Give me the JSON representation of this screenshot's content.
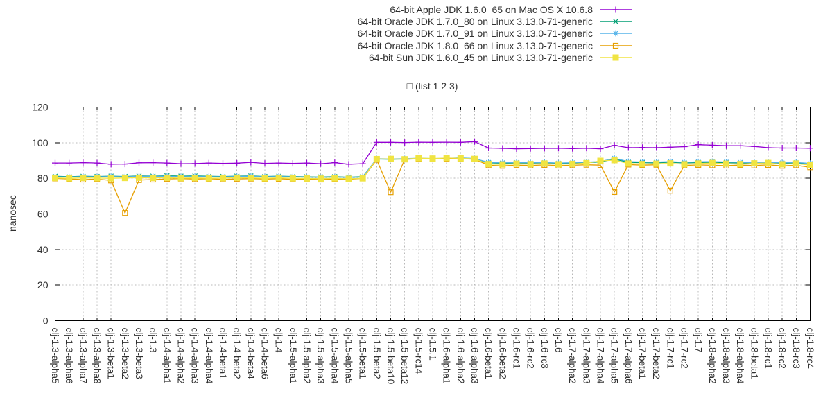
{
  "chart_data": {
    "type": "line",
    "title": "□ (list 1 2 3)",
    "ylabel": "nanosec",
    "xlabel": "",
    "ylim": [
      0,
      120
    ],
    "yticks": [
      0,
      20,
      40,
      60,
      80,
      100,
      120
    ],
    "grid": true,
    "legend_position": "top-center-outside",
    "categories": [
      "clj-1.3-alpha5",
      "clj-1.3-alpha6",
      "clj-1.3-alpha7",
      "clj-1.3-alpha8",
      "clj-1.3-beta1",
      "clj-1.3-beta2",
      "clj-1.3-beta3",
      "clj-1.3",
      "clj-1.4-alpha1",
      "clj-1.4-alpha2",
      "clj-1.4-alpha3",
      "clj-1.4-alpha4",
      "clj-1.4-beta1",
      "clj-1.4-beta2",
      "clj-1.4-beta4",
      "clj-1.4-beta6",
      "clj-1.4",
      "clj-1.5-alpha1",
      "clj-1.5-alpha2",
      "clj-1.5-alpha3",
      "clj-1.5-alpha4",
      "clj-1.5-alpha5",
      "clj-1.5-beta1",
      "clj-1.5-beta2",
      "clj-1.5-beta10",
      "clj-1.5-beta12",
      "clj-1.5-rc14",
      "clj-1.5.1",
      "clj-1.6-alpha1",
      "clj-1.6-alpha2",
      "clj-1.6-alpha3",
      "clj-1.6-beta1",
      "clj-1.6-beta2",
      "clj-1.6-rc1",
      "clj-1.6-rc2",
      "clj-1.6-rc3",
      "clj-1.6",
      "clj-1.7-alpha2",
      "clj-1.7-alpha3",
      "clj-1.7-alpha4",
      "clj-1.7-alpha5",
      "clj-1.7-alpha6",
      "clj-1.7-beta1",
      "clj-1.7-beta2",
      "clj-1.7-rc1",
      "clj-1.7-rc2",
      "clj-1.7",
      "clj-1.8-alpha2",
      "clj-1.8-alpha3",
      "clj-1.8-alpha4",
      "clj-1.8-beta1",
      "clj-1.8-rc1",
      "clj-1.8-rc2",
      "clj-1.8-rc3",
      "clj-1.8-rc4"
    ],
    "series": [
      {
        "name": "64-bit Apple JDK 1.6.0_65 on Mac OS X 10.6.8",
        "color": "#9400d3",
        "marker": "plus",
        "values": [
          88.6,
          88.6,
          88.8,
          88.6,
          87.9,
          88.0,
          88.7,
          88.8,
          88.6,
          88.2,
          88.3,
          88.6,
          88.4,
          88.5,
          89.0,
          88.4,
          88.6,
          88.4,
          88.6,
          88.2,
          88.8,
          87.9,
          88.2,
          100.2,
          100.2,
          100.1,
          100.3,
          100.2,
          100.3,
          100.2,
          100.6,
          97.0,
          96.8,
          96.6,
          96.7,
          96.8,
          96.9,
          96.7,
          96.9,
          96.6,
          98.5,
          97.2,
          97.3,
          97.2,
          97.5,
          97.8,
          98.9,
          98.6,
          98.3,
          98.3,
          97.9,
          97.2,
          97.0,
          97.0,
          96.9
        ]
      },
      {
        "name": "64-bit Oracle JDK 1.7.0_80 on Linux 3.13.0-71-generic",
        "color": "#009e73",
        "marker": "cross",
        "values": [
          81.1,
          80.9,
          81.1,
          81.0,
          81.2,
          81.0,
          81.3,
          81.2,
          81.4,
          81.2,
          81.3,
          81.1,
          81.0,
          81.2,
          81.3,
          81.0,
          81.2,
          81.0,
          80.8,
          80.7,
          80.9,
          80.6,
          80.9,
          90.8,
          90.7,
          90.8,
          91.2,
          91.0,
          91.1,
          91.4,
          91.0,
          88.7,
          88.5,
          88.6,
          88.4,
          88.6,
          88.3,
          88.5,
          88.8,
          89.2,
          90.8,
          89.0,
          88.8,
          88.7,
          89.1,
          88.6,
          88.9,
          89.0,
          88.8,
          88.6,
          88.4,
          88.6,
          88.3,
          88.5,
          87.9
        ]
      },
      {
        "name": "64-bit Oracle JDK 1.7.0_91 on Linux 3.13.0-71-generic",
        "color": "#56b4e9",
        "marker": "asterisk",
        "values": [
          80.8,
          80.7,
          80.9,
          80.8,
          81.0,
          80.8,
          81.1,
          81.0,
          81.1,
          80.9,
          81.0,
          80.9,
          80.8,
          81.0,
          81.1,
          80.8,
          81.0,
          80.8,
          80.6,
          80.5,
          80.7,
          80.4,
          80.7,
          91.0,
          90.9,
          91.0,
          91.3,
          91.1,
          91.2,
          91.5,
          91.1,
          89.0,
          88.8,
          88.9,
          88.7,
          88.9,
          88.6,
          88.8,
          89.1,
          89.4,
          91.3,
          89.4,
          89.2,
          89.1,
          89.4,
          89.0,
          89.3,
          89.4,
          89.2,
          89.0,
          88.8,
          89.0,
          88.7,
          88.9,
          88.4
        ]
      },
      {
        "name": "64-bit Oracle JDK 1.8.0_66 on Linux 3.13.0-71-generic",
        "color": "#e69f00",
        "marker": "square-open",
        "values": [
          79.9,
          79.6,
          79.3,
          79.5,
          78.8,
          60.5,
          79.0,
          79.3,
          79.6,
          79.8,
          79.5,
          79.7,
          79.4,
          79.6,
          79.8,
          79.5,
          79.7,
          79.4,
          79.6,
          79.3,
          79.6,
          79.4,
          79.9,
          90.4,
          72.2,
          90.6,
          91.0,
          90.8,
          90.9,
          91.0,
          90.7,
          87.3,
          87.0,
          87.4,
          87.2,
          87.5,
          87.1,
          87.3,
          87.6,
          87.4,
          72.3,
          87.7,
          87.4,
          87.6,
          73.0,
          87.2,
          87.5,
          87.3,
          87.1,
          87.4,
          87.2,
          87.5,
          87.0,
          87.3,
          86.2
        ]
      },
      {
        "name": "64-bit Sun JDK 1.6.0_45 on Linux 3.13.0-71-generic",
        "color": "#f0e442",
        "marker": "square-filled",
        "values": [
          80.2,
          80.0,
          80.2,
          80.1,
          80.0,
          80.2,
          80.3,
          80.2,
          80.3,
          80.1,
          80.2,
          80.0,
          80.1,
          80.3,
          80.2,
          80.0,
          80.2,
          80.0,
          79.9,
          79.8,
          80.0,
          79.7,
          80.0,
          90.8,
          90.9,
          90.7,
          91.3,
          91.1,
          91.4,
          91.2,
          90.9,
          88.0,
          87.8,
          88.2,
          88.0,
          88.3,
          87.9,
          88.1,
          88.5,
          89.8,
          90.2,
          88.3,
          88.0,
          88.2,
          88.4,
          87.9,
          88.3,
          88.6,
          88.2,
          88.0,
          88.4,
          88.6,
          87.9,
          88.3,
          87.4
        ]
      }
    ]
  }
}
